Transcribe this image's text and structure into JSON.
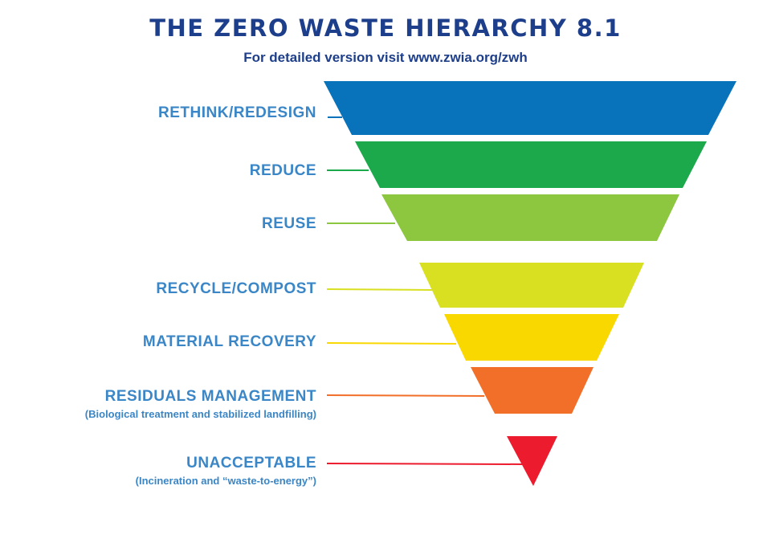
{
  "header": {
    "title": "THE ZERO WASTE HIERARCHY 8.1",
    "subtitle": "For detailed version visit www.zwia.org/zwh"
  },
  "tiers": [
    {
      "label": "RETHINK/REDESIGN",
      "note": "",
      "color": "#0873bb"
    },
    {
      "label": "REDUCE",
      "note": "",
      "color": "#1ba94c"
    },
    {
      "label": "REUSE",
      "note": "",
      "color": "#8dc63f"
    },
    {
      "label": "RECYCLE/COMPOST",
      "note": "",
      "color": "#d9e021"
    },
    {
      "label": "MATERIAL RECOVERY",
      "note": "",
      "color": "#f9d800"
    },
    {
      "label": "RESIDUALS MANAGEMENT",
      "note": "(Biological treatment and stabilized landfilling)",
      "color": "#f26f2a"
    },
    {
      "label": "UNACCEPTABLE",
      "note": "(Incineration and “waste-to-energy”)",
      "color": "#ec1c2e"
    }
  ]
}
